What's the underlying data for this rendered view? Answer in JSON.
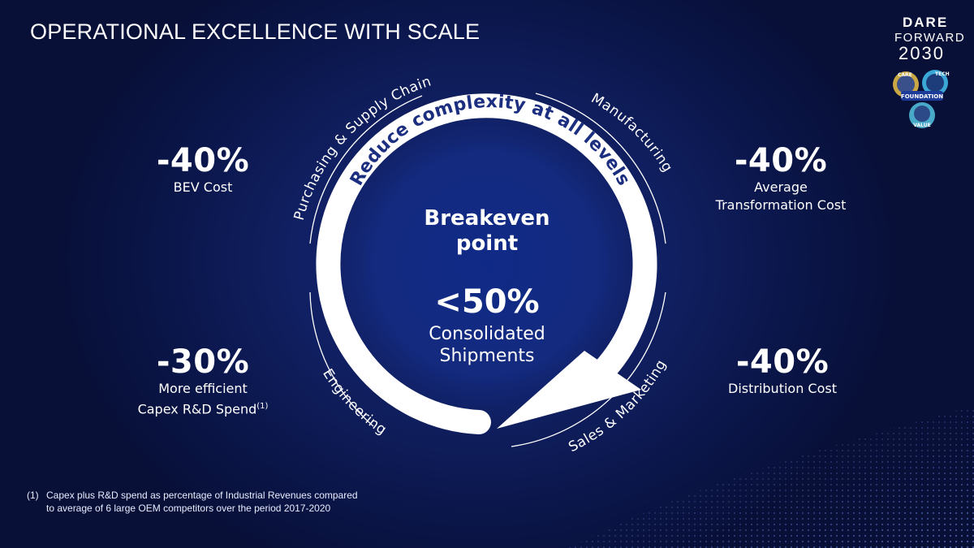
{
  "title": "OPERATIONAL EXCELLENCE WITH SCALE",
  "logo": {
    "dare": "DARE",
    "forward": "FORWARD",
    "year": "2030",
    "badge_labels": [
      "CARE",
      "TECH",
      "FOUNDATION",
      "VALUE"
    ]
  },
  "stats": {
    "top_left": {
      "value": "-40%",
      "label": "BEV Cost"
    },
    "top_right": {
      "value": "-40%",
      "label_line1": "Average",
      "label_line2": "Transformation Cost"
    },
    "bottom_left": {
      "value": "-30%",
      "label_line1": "More efficient",
      "label_line2": "Capex R&D Spend",
      "footnote_ref": "(1)"
    },
    "bottom_right": {
      "value": "-40%",
      "label": "Distribution Cost"
    }
  },
  "cycle": {
    "inner_arc_text": "Reduce complexity at all levels",
    "segments": {
      "top_left": "Purchasing & Supply Chain",
      "top_right": "Manufacturing",
      "bottom_left": "Engineering",
      "bottom_right": "Sales & Marketing"
    }
  },
  "center": {
    "title_line1": "Breakeven",
    "title_line2": "point",
    "value": "<50%",
    "sub_line1": "Consolidated",
    "sub_line2": "Shipments"
  },
  "footnote": {
    "number": "(1)",
    "line1": "Capex plus R&D spend as percentage  of Industrial Revenues compared",
    "line2": "to average  of 6 large OEM competitors  over the period 2017-2020"
  },
  "colors": {
    "background": "#0b174d",
    "center_glow": "#1b2f84",
    "arrow": "#ffffff",
    "arc_text": "#1b2e80"
  }
}
